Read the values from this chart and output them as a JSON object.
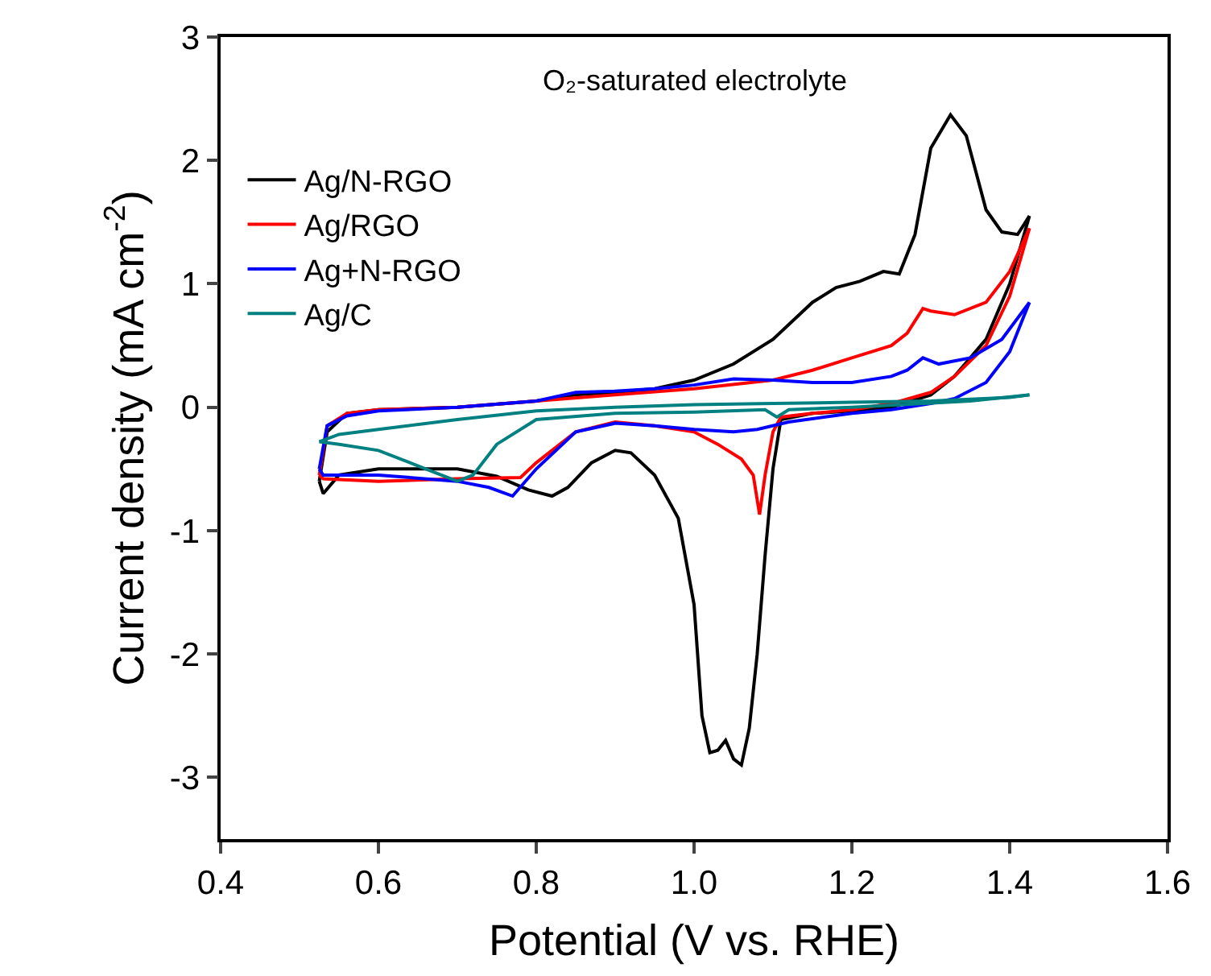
{
  "chart_data": {
    "type": "line",
    "xlabel": "Potential (V vs. RHE)",
    "ylabel": "Current density (mA cm$^{-2}$)",
    "annotations": [
      "O₂-saturated electrolyte"
    ],
    "xlim": [
      0.4,
      1.6
    ],
    "xticks": [
      {
        "value": 0.4,
        "label": "0.4"
      },
      {
        "value": 0.6,
        "label": "0.6"
      },
      {
        "value": 0.8,
        "label": "0.8"
      },
      {
        "value": 1.0,
        "label": "1.0"
      },
      {
        "value": 1.2,
        "label": "1.2"
      },
      {
        "value": 1.4,
        "label": "1.4"
      },
      {
        "value": 1.6,
        "label": "1.6"
      }
    ],
    "ylim": [
      -3.5,
      3
    ],
    "yticks": [
      -3,
      -2,
      -1,
      0,
      1,
      2,
      3
    ],
    "legend": "top left",
    "marker": "none",
    "line_style": "solid",
    "series": [
      {
        "name": "Ag/N-RGO",
        "color": "#000000",
        "x": [
          0.525,
          0.535,
          0.56,
          0.6,
          0.7,
          0.8,
          0.85,
          0.9,
          0.95,
          1.0,
          1.05,
          1.1,
          1.15,
          1.18,
          1.21,
          1.24,
          1.26,
          1.28,
          1.3,
          1.325,
          1.345,
          1.37,
          1.39,
          1.41,
          1.425
        ],
        "values": [
          -0.6,
          -0.2,
          -0.05,
          -0.02,
          0.0,
          0.05,
          0.1,
          0.12,
          0.15,
          0.22,
          0.35,
          0.55,
          0.85,
          0.97,
          1.02,
          1.1,
          1.08,
          1.4,
          2.1,
          2.37,
          2.2,
          1.6,
          1.42,
          1.4,
          1.55
        ]
      },
      {
        "color": "#000000",
        "x": [
          0.525,
          0.53,
          0.55,
          0.6,
          0.7,
          0.75,
          0.79,
          0.82,
          0.84,
          0.87,
          0.9,
          0.92,
          0.95,
          0.98,
          1.0,
          1.01,
          1.02,
          1.03,
          1.04,
          1.05,
          1.06,
          1.07,
          1.08,
          1.09,
          1.1,
          1.11,
          1.15,
          1.2,
          1.25,
          1.3,
          1.33,
          1.37,
          1.4,
          1.425
        ],
        "values": [
          -0.6,
          -0.7,
          -0.55,
          -0.5,
          -0.5,
          -0.56,
          -0.67,
          -0.72,
          -0.65,
          -0.45,
          -0.35,
          -0.37,
          -0.55,
          -0.9,
          -1.6,
          -2.5,
          -2.8,
          -2.78,
          -2.7,
          -2.85,
          -2.9,
          -2.6,
          -2.0,
          -1.2,
          -0.5,
          -0.1,
          -0.05,
          -0.03,
          0.0,
          0.1,
          0.25,
          0.55,
          1.0,
          1.55
        ]
      },
      {
        "name": "Ag/RGO",
        "color": "#ff0000",
        "x": [
          0.525,
          0.535,
          0.56,
          0.6,
          0.7,
          0.8,
          0.9,
          1.0,
          1.1,
          1.15,
          1.2,
          1.25,
          1.27,
          1.29,
          1.3,
          1.33,
          1.37,
          1.4,
          1.425
        ],
        "values": [
          -0.55,
          -0.15,
          -0.05,
          -0.02,
          0.0,
          0.05,
          0.1,
          0.15,
          0.22,
          0.3,
          0.4,
          0.5,
          0.6,
          0.8,
          0.78,
          0.75,
          0.85,
          1.1,
          1.45
        ]
      },
      {
        "color": "#ff0000",
        "x": [
          0.525,
          0.53,
          0.6,
          0.7,
          0.78,
          0.8,
          0.85,
          0.9,
          0.95,
          1.0,
          1.03,
          1.06,
          1.075,
          1.083,
          1.09,
          1.1,
          1.11,
          1.15,
          1.2,
          1.25,
          1.3,
          1.33,
          1.37,
          1.4,
          1.425
        ],
        "values": [
          -0.55,
          -0.58,
          -0.6,
          -0.58,
          -0.57,
          -0.45,
          -0.2,
          -0.12,
          -0.15,
          -0.2,
          -0.3,
          -0.42,
          -0.55,
          -0.87,
          -0.55,
          -0.2,
          -0.08,
          -0.05,
          -0.02,
          0.03,
          0.12,
          0.25,
          0.5,
          0.9,
          1.45
        ]
      },
      {
        "name": "Ag+N-RGO",
        "color": "#0000ff",
        "x": [
          0.525,
          0.535,
          0.56,
          0.6,
          0.7,
          0.8,
          0.85,
          0.9,
          0.95,
          1.0,
          1.05,
          1.1,
          1.15,
          1.2,
          1.25,
          1.27,
          1.29,
          1.31,
          1.35,
          1.39,
          1.425
        ],
        "values": [
          -0.5,
          -0.15,
          -0.07,
          -0.03,
          0.0,
          0.05,
          0.12,
          0.13,
          0.15,
          0.18,
          0.23,
          0.22,
          0.2,
          0.2,
          0.25,
          0.3,
          0.4,
          0.35,
          0.4,
          0.55,
          0.85
        ]
      },
      {
        "color": "#0000ff",
        "x": [
          0.525,
          0.53,
          0.6,
          0.7,
          0.74,
          0.77,
          0.8,
          0.85,
          0.9,
          0.95,
          1.0,
          1.05,
          1.08,
          1.12,
          1.2,
          1.25,
          1.3,
          1.33,
          1.37,
          1.4,
          1.425
        ],
        "values": [
          -0.5,
          -0.55,
          -0.55,
          -0.6,
          -0.65,
          -0.72,
          -0.5,
          -0.2,
          -0.13,
          -0.15,
          -0.18,
          -0.2,
          -0.18,
          -0.12,
          -0.05,
          -0.02,
          0.03,
          0.07,
          0.2,
          0.45,
          0.85
        ]
      },
      {
        "name": "Ag/C",
        "color": "#008080",
        "x": [
          0.525,
          0.55,
          0.6,
          0.7,
          0.8,
          0.9,
          1.0,
          1.1,
          1.2,
          1.3,
          1.4,
          1.425
        ],
        "values": [
          -0.28,
          -0.22,
          -0.18,
          -0.1,
          -0.03,
          0.0,
          0.02,
          0.03,
          0.04,
          0.05,
          0.08,
          0.1
        ]
      },
      {
        "color": "#008080",
        "x": [
          0.525,
          0.55,
          0.6,
          0.66,
          0.7,
          0.72,
          0.75,
          0.8,
          0.9,
          1.0,
          1.09,
          1.105,
          1.12,
          1.2,
          1.35,
          1.425
        ],
        "values": [
          -0.28,
          -0.3,
          -0.35,
          -0.5,
          -0.6,
          -0.55,
          -0.3,
          -0.1,
          -0.05,
          -0.04,
          -0.02,
          -0.08,
          -0.02,
          0.0,
          0.05,
          0.1
        ]
      }
    ]
  }
}
